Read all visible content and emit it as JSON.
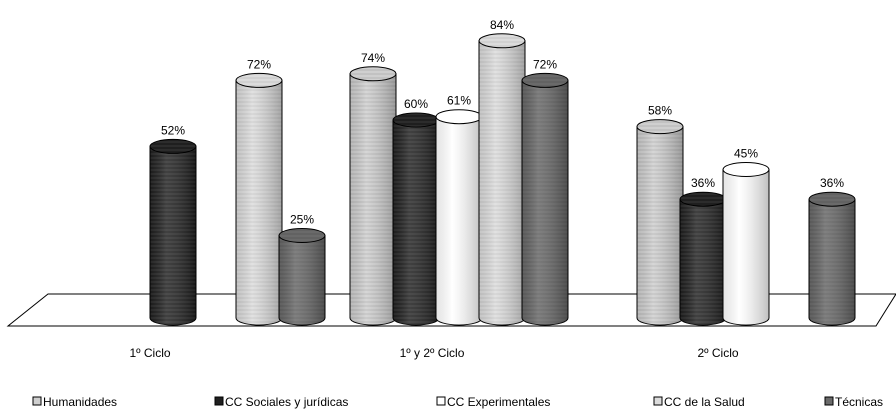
{
  "chart_data": {
    "type": "bar",
    "style": "3d-cylinder",
    "categories": [
      "1º Ciclo",
      "1º y 2º Ciclo",
      "2º Ciclo"
    ],
    "series": [
      {
        "name": "Humanidades",
        "values": [
          null,
          74,
          58
        ],
        "color": "#c8c8c8",
        "pattern": "light-hatch"
      },
      {
        "name": "CC Sociales y jurídicas",
        "values": [
          52,
          60,
          36
        ],
        "color": "#1a1a1a",
        "pattern": "dark-hatch"
      },
      {
        "name": "CC Experimentales",
        "values": [
          null,
          61,
          45
        ],
        "color": "#ffffff",
        "pattern": "white"
      },
      {
        "name": "CC de la Salud",
        "values": [
          72,
          84,
          null
        ],
        "color": "#d9d9d9",
        "pattern": "light"
      },
      {
        "name": "Técnicas",
        "values": [
          25,
          72,
          36
        ],
        "color": "#6b6b6b",
        "pattern": "mid-gray"
      }
    ],
    "value_suffix": "%",
    "ylim": [
      0,
      100
    ],
    "legend_position": "bottom",
    "grid": false
  }
}
